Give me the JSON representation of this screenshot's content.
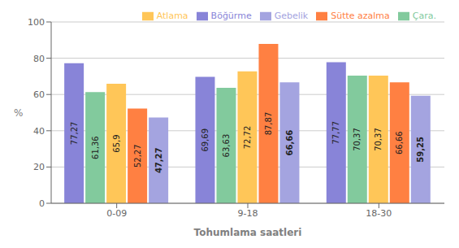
{
  "chart_data": {
    "type": "bar",
    "categories": [
      "0-09",
      "9-18",
      "18-30"
    ],
    "series": [
      {
        "name": "Böğürme",
        "color": "#8884d8",
        "values": [
          77.27,
          69.69,
          77.77
        ],
        "value_labels": [
          "77,27",
          "69,69",
          "77,77"
        ]
      },
      {
        "name": "Çara.",
        "color": "#82ca9d",
        "values": [
          61.36,
          63.63,
          70.37
        ],
        "value_labels": [
          "61,36",
          "63,63",
          "70,37"
        ]
      },
      {
        "name": "Atlama",
        "color": "#ffc658",
        "values": [
          65.9,
          72.72,
          70.37
        ],
        "value_labels": [
          "65,9",
          "72,72",
          "70,37"
        ]
      },
      {
        "name": "Sütte azalma",
        "color": "#ff8042",
        "values": [
          52.27,
          87.87,
          66.66
        ],
        "value_labels": [
          "52,27",
          "87,87",
          "66,66"
        ]
      },
      {
        "name": "Gebelik",
        "color": "#a4a4e0",
        "values": [
          47.27,
          66.66,
          59.25
        ],
        "value_labels": [
          "47,27",
          "66,66",
          "59,25"
        ]
      }
    ],
    "ylabel": "%",
    "xlabel": "Tohumlama saatleri",
    "ylim": [
      0,
      100
    ],
    "yticks": [
      0,
      20,
      40,
      60,
      80,
      100
    ],
    "grid": true,
    "legend": "upper right",
    "data_labels": true
  }
}
